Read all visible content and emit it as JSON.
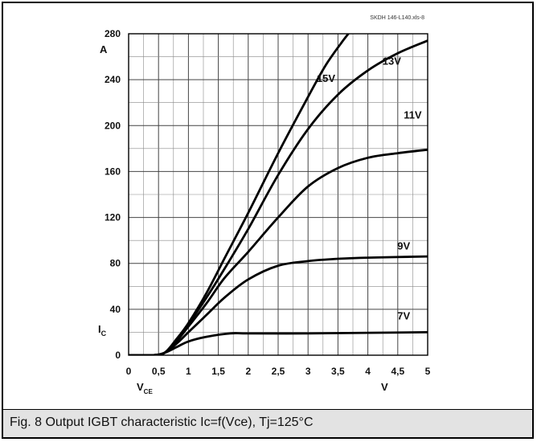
{
  "source_label": "SKDH 146-L140.xls-8",
  "caption": "Fig. 8 Output IGBT characteristic Ic=f(Vce), Tj=125°C",
  "chart_data": {
    "type": "line",
    "title": "",
    "xlabel": "VCE",
    "xunit": "V",
    "ylabel": "IC",
    "yunit": "A",
    "xlim": [
      0,
      5
    ],
    "ylim": [
      0,
      280
    ],
    "grid": true,
    "x_ticks": [
      0,
      0.5,
      1,
      1.5,
      2,
      2.5,
      3,
      3.5,
      4,
      4.5,
      5
    ],
    "x_tick_labels": [
      "0",
      "0,5",
      "1",
      "1,5",
      "2",
      "2,5",
      "3",
      "3,5",
      "4",
      "4,5",
      "5"
    ],
    "y_ticks": [
      0,
      40,
      80,
      120,
      160,
      200,
      240,
      280
    ],
    "y_tick_labels": [
      "0",
      "40",
      "80",
      "120",
      "160",
      "200",
      "240",
      "280"
    ],
    "series": [
      {
        "name": "7V",
        "x": [
          0,
          0.4,
          0.6,
          0.8,
          1.0,
          1.3,
          1.7,
          2.0,
          3.0,
          4.0,
          5.0
        ],
        "y": [
          0,
          0,
          2,
          7,
          12,
          16,
          19,
          19,
          19,
          19.5,
          20
        ],
        "label_at": [
          4.6,
          31
        ]
      },
      {
        "name": "9V",
        "x": [
          0,
          0.4,
          0.6,
          0.8,
          1.0,
          1.3,
          1.6,
          2.0,
          2.5,
          3.0,
          3.5,
          4.0,
          5.0
        ],
        "y": [
          0,
          0,
          2,
          10,
          20,
          35,
          50,
          66,
          78,
          82,
          84,
          85,
          86
        ],
        "label_at": [
          4.6,
          92
        ]
      },
      {
        "name": "11V",
        "x": [
          0,
          0.4,
          0.6,
          0.8,
          1.0,
          1.3,
          1.6,
          2.0,
          2.5,
          3.0,
          3.5,
          4.0,
          4.5,
          5.0
        ],
        "y": [
          0,
          0,
          2,
          12,
          25,
          45,
          67,
          90,
          120,
          147,
          163,
          172,
          176,
          179
        ],
        "label_at": [
          4.75,
          206
        ]
      },
      {
        "name": "13V",
        "x": [
          0,
          0.4,
          0.6,
          0.8,
          1.0,
          1.3,
          1.6,
          2.0,
          2.5,
          3.0,
          3.5,
          4.0,
          4.5,
          5.0
        ],
        "y": [
          0,
          0,
          2,
          13,
          27,
          50,
          75,
          110,
          157,
          197,
          227,
          248,
          263,
          274
        ],
        "label_at": [
          4.4,
          253
        ]
      },
      {
        "name": "15V",
        "x": [
          0,
          0.4,
          0.6,
          0.8,
          1.0,
          1.3,
          1.6,
          2.0,
          2.5,
          3.0,
          3.3,
          3.6,
          3.8
        ],
        "y": [
          0,
          0,
          2,
          14,
          28,
          54,
          84,
          124,
          176,
          225,
          253,
          275,
          288
        ],
        "label_at": [
          3.3,
          238
        ]
      }
    ]
  }
}
